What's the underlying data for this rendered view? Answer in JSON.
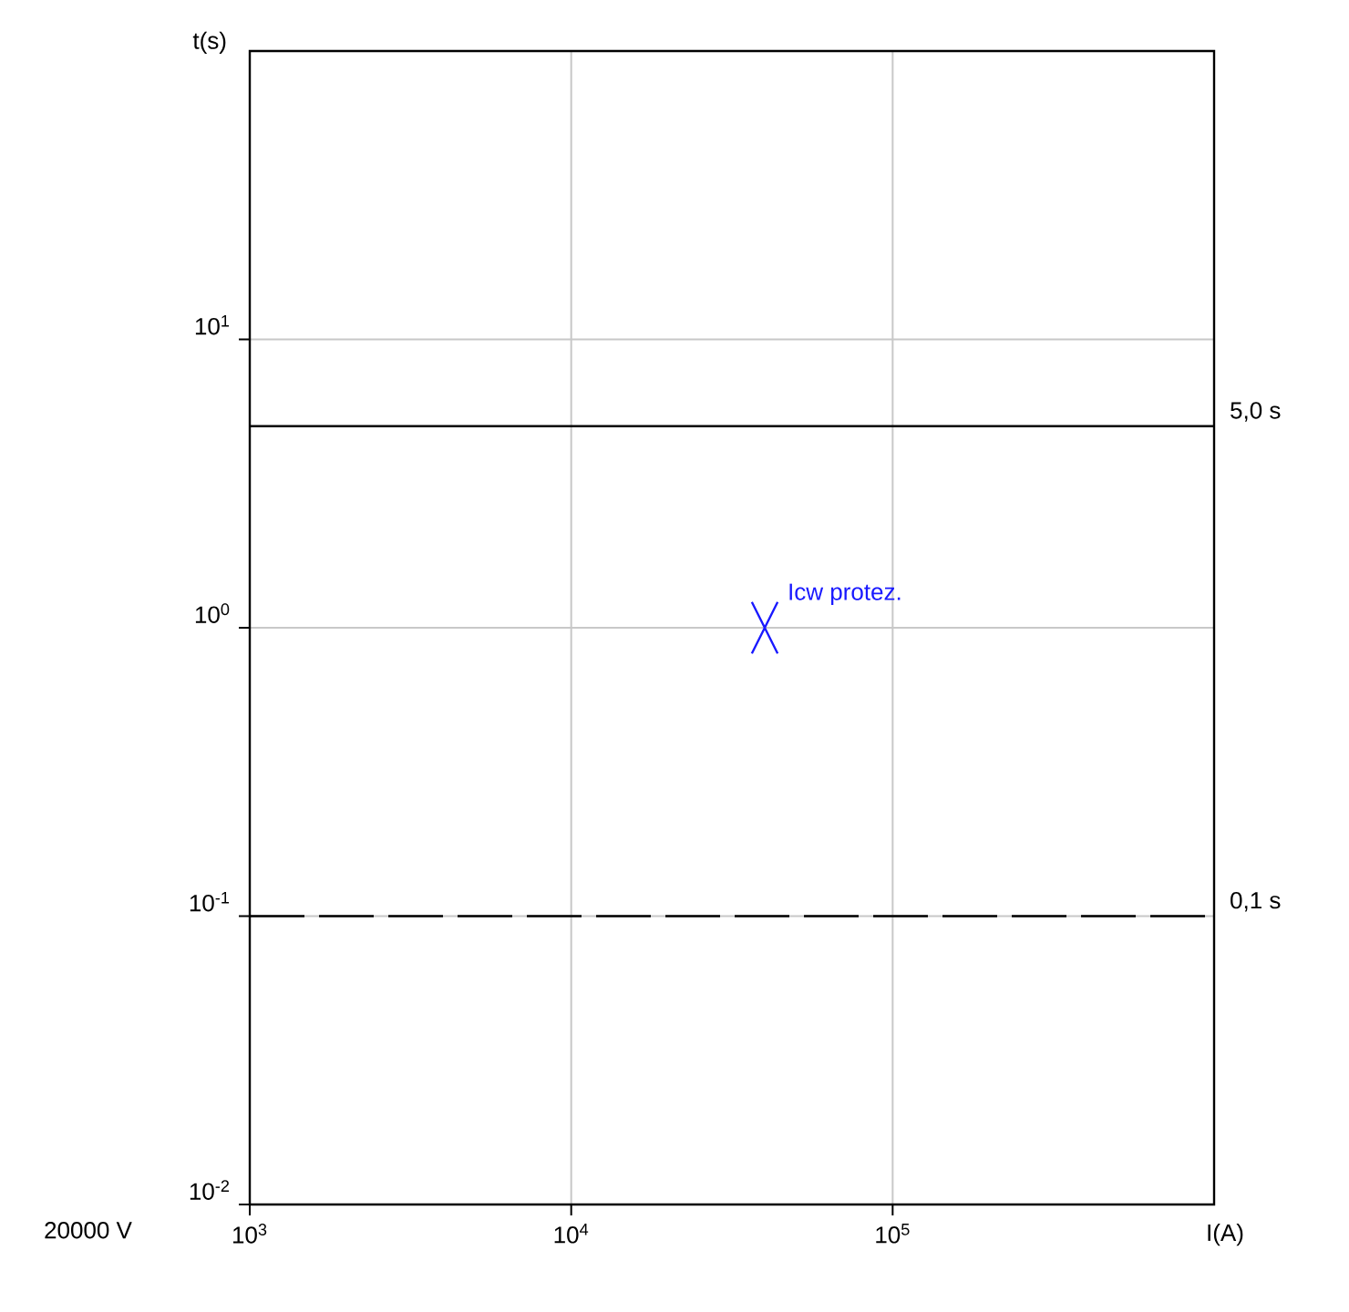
{
  "chart_data": {
    "type": "scatter",
    "xlabel": "I(A)",
    "ylabel": "t(s)",
    "log": "xy",
    "grid": true,
    "xlim": [
      1000,
      1000000
    ],
    "ylim": [
      0.01,
      100
    ],
    "xticks": [
      {
        "value": 1000,
        "label": "10$^{3}$"
      },
      {
        "value": 10000,
        "label": "10$^{4}$"
      },
      {
        "value": 100000,
        "label": "10$^{5}$"
      }
    ],
    "yticks": [
      {
        "value": 0.01,
        "label": "10$^{-2}$"
      },
      {
        "value": 0.1,
        "label": "10$^{-1}$"
      },
      {
        "value": 1,
        "label": "10$^{0}$"
      },
      {
        "value": 10,
        "label": "10$^{1}$"
      }
    ],
    "series": [
      {
        "name": "Icw protez.",
        "color": "#1a1aff",
        "x": [
          40000
        ],
        "values": [
          1
        ],
        "marker": "cross"
      }
    ],
    "ref_lines": [
      {
        "axis": "y",
        "value": 5,
        "label": "5,0 s",
        "color": "#000000",
        "line_style": "solid"
      },
      {
        "axis": "y",
        "value": 0.1,
        "label": "0,1 s",
        "color": "#000000",
        "line_style": "dashed"
      }
    ],
    "annotations": [
      "20000 V"
    ]
  }
}
